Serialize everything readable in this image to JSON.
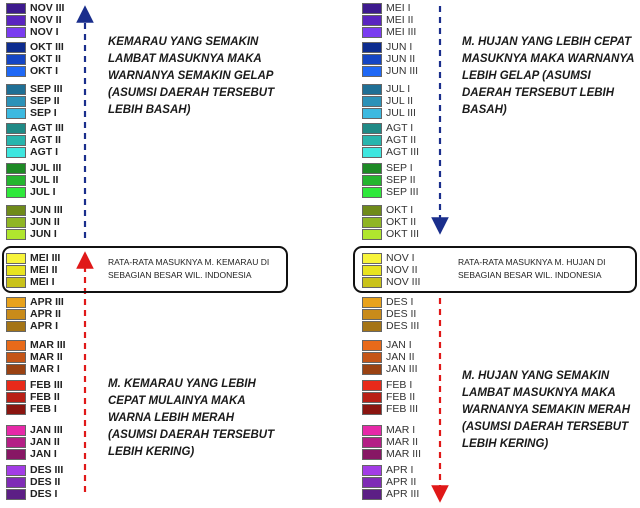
{
  "left": {
    "top_groups": [
      {
        "labels": [
          "NOV III",
          "NOV II",
          "NOV I"
        ],
        "colors": [
          "#3d1a8e",
          "#5a24c0",
          "#7a3cf0"
        ]
      },
      {
        "labels": [
          "OKT III",
          "OKT II",
          "OKT I"
        ],
        "colors": [
          "#0d2c8f",
          "#1445c4",
          "#1f68f5"
        ]
      },
      {
        "labels": [
          "SEP III",
          "SEP II",
          "SEP I"
        ],
        "colors": [
          "#1f6f95",
          "#2c92b8",
          "#3cb9e0"
        ]
      },
      {
        "labels": [
          "AGT III",
          "AGT II",
          "AGT I"
        ],
        "colors": [
          "#1f8a86",
          "#27b5ad",
          "#3ee6df"
        ]
      },
      {
        "labels": [
          "JUL III",
          "JUL II",
          "JUL I"
        ],
        "colors": [
          "#1d8a25",
          "#24b52f",
          "#2fe83b"
        ]
      },
      {
        "labels": [
          "JUN III",
          "JUN II",
          "JUN I"
        ],
        "colors": [
          "#6f8a1a",
          "#8fb524",
          "#b0e62e"
        ]
      }
    ],
    "mid_group": {
      "labels": [
        "MEI III",
        "MEI II",
        "MEI I"
      ],
      "colors": [
        "#f7f43a",
        "#e8e31f",
        "#c9c21a"
      ]
    },
    "bottom_groups": [
      {
        "labels": [
          "APR III",
          "APR II",
          "APR I"
        ],
        "colors": [
          "#e8a21c",
          "#c98b1a",
          "#a47416"
        ]
      },
      {
        "labels": [
          "MAR III",
          "MAR II",
          "MAR I"
        ],
        "colors": [
          "#e86a1a",
          "#c45518",
          "#9a4212"
        ]
      },
      {
        "labels": [
          "FEB III",
          "FEB II",
          "FEB I"
        ],
        "colors": [
          "#e82a1a",
          "#b81f16",
          "#8a1510"
        ]
      },
      {
        "labels": [
          "JAN III",
          "JAN II",
          "JAN I"
        ],
        "colors": [
          "#e629a8",
          "#b41f85",
          "#871764"
        ]
      },
      {
        "labels": [
          "DES III",
          "DES II",
          "DES I"
        ],
        "colors": [
          "#a33ce6",
          "#7f2cb5",
          "#5c1f85"
        ]
      }
    ],
    "top_note": "KEMARAU YANG SEMAKIN LAMBAT MASUKNYA MAKA WARNANYA SEMAKIN GELAP (ASUMSI DAERAH TERSEBUT LEBIH BASAH)",
    "box_text": "RATA-RATA MASUKNYA M. KEMARAU DI SEBAGIAN BESAR WIL. INDONESIA",
    "bottom_note": "M. KEMARAU YANG LEBIH CEPAT MULAINYA MAKA WARNA LEBIH MERAH (ASUMSI DAERAH TERSEBUT LEBIH KERING)"
  },
  "right": {
    "top_groups": [
      {
        "labels": [
          "MEI I",
          "MEI II",
          "MEI III"
        ],
        "colors": [
          "#3d1a8e",
          "#5a24c0",
          "#7a3cf0"
        ]
      },
      {
        "labels": [
          "JUN I",
          "JUN II",
          "JUN III"
        ],
        "colors": [
          "#0d2c8f",
          "#1445c4",
          "#1f68f5"
        ]
      },
      {
        "labels": [
          "JUL I",
          "JUL II",
          "JUL III"
        ],
        "colors": [
          "#1f6f95",
          "#2c92b8",
          "#3cb9e0"
        ]
      },
      {
        "labels": [
          "AGT I",
          "AGT II",
          "AGT III"
        ],
        "colors": [
          "#1f8a86",
          "#27b5ad",
          "#3ee6df"
        ]
      },
      {
        "labels": [
          "SEP I",
          "SEP II",
          "SEP III"
        ],
        "colors": [
          "#1d8a25",
          "#24b52f",
          "#2fe83b"
        ]
      },
      {
        "labels": [
          "OKT I",
          "OKT II",
          "OKT III"
        ],
        "colors": [
          "#6f8a1a",
          "#8fb524",
          "#b0e62e"
        ]
      }
    ],
    "mid_group": {
      "labels": [
        "NOV I",
        "NOV II",
        "NOV III"
      ],
      "colors": [
        "#f7f43a",
        "#e8e31f",
        "#c9c21a"
      ]
    },
    "bottom_groups": [
      {
        "labels": [
          "DES I",
          "DES II",
          "DES III"
        ],
        "colors": [
          "#e8a21c",
          "#c98b1a",
          "#a47416"
        ]
      },
      {
        "labels": [
          "JAN I",
          "JAN II",
          "JAN III"
        ],
        "colors": [
          "#e86a1a",
          "#c45518",
          "#9a4212"
        ]
      },
      {
        "labels": [
          "FEB I",
          "FEB II",
          "FEB III"
        ],
        "colors": [
          "#e82a1a",
          "#b81f16",
          "#8a1510"
        ]
      },
      {
        "labels": [
          "MAR I",
          "MAR II",
          "MAR III"
        ],
        "colors": [
          "#e629a8",
          "#b41f85",
          "#871764"
        ]
      },
      {
        "labels": [
          "APR I",
          "APR II",
          "APR III"
        ],
        "colors": [
          "#a33ce6",
          "#7f2cb5",
          "#5c1f85"
        ]
      }
    ],
    "top_note": "M. HUJAN YANG LEBIH CEPAT MASUKNYA MAKA WARNANYA LEBIH GELAP (ASUMSI DAERAH TERSEBUT LEBIH BASAH)",
    "box_text": "RATA-RATA MASUKNYA M. HUJAN DI SEBAGIAN BESAR WIL. INDONESIA",
    "bottom_note": "M. HUJAN YANG SEMAKIN LAMBAT MASUKNYA MAKA WARNANYA SEMAKIN MERAH (ASUMSI DAERAH TERSEBUT LEBIH KERING)"
  },
  "arrow_colors": {
    "blue": "#1a2e8c",
    "red": "#e01818"
  }
}
